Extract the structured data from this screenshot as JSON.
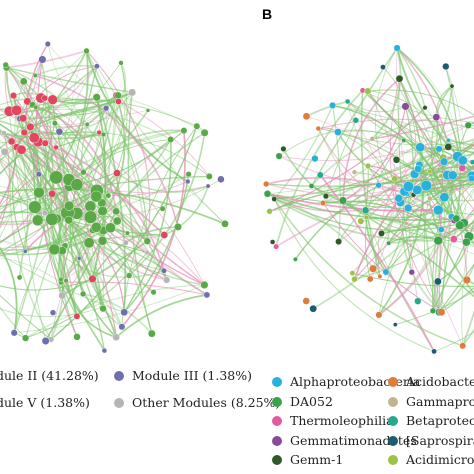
{
  "panel_b_label": "B",
  "panel_a": {
    "colors": {
      "module_ii": "#5aa846",
      "module_iii": "#6f6fb0",
      "module_v": "#e0475f",
      "other": "#b5b5b5",
      "edge_pos": "#7cc46a",
      "edge_neg": "#e58bb6"
    },
    "legend": [
      {
        "label": "dule II (41.28%)",
        "color": "#5aa846",
        "icon": "module-ii-dot"
      },
      {
        "label": "Module III (1.38%)",
        "color": "#6f6fb0",
        "icon": "module-iii-dot"
      },
      {
        "label": "dule V (1.38%)",
        "color": "#e0475f",
        "icon": "module-v-dot"
      },
      {
        "label": "Other Modules (8.25%)",
        "color": "#b5b5b5",
        "icon": "other-modules-dot"
      }
    ]
  },
  "panel_b": {
    "legend": [
      {
        "label": "Alphaproteobacteria",
        "color": "#2ab1d9",
        "icon": "alphaproteobacteria-dot"
      },
      {
        "label": "Acidobacter",
        "color": "#e07b39",
        "icon": "acidobacteria-dot"
      },
      {
        "label": "DA052",
        "color": "#3aa24b",
        "icon": "da052-dot"
      },
      {
        "label": "Gammaprot",
        "color": "#c4b48e",
        "icon": "gammaproteobacteria-dot"
      },
      {
        "label": "Thermoleophilia",
        "color": "#e35a9f",
        "icon": "thermoleophilia-dot"
      },
      {
        "label": "Betaproteob",
        "color": "#26a88c",
        "icon": "betaproteobacteria-dot"
      },
      {
        "label": "Gemmatimonadetes",
        "color": "#8a4a9a",
        "icon": "gemmatimonadetes-dot"
      },
      {
        "label": "[Saprospira",
        "color": "#1d5a73",
        "icon": "saprospirae-dot"
      },
      {
        "label": "Gemm-1",
        "color": "#2f5a28",
        "icon": "gemm-1-dot"
      },
      {
        "label": "Acidimicro",
        "color": "#9cc24a",
        "icon": "acidimicrobiia-dot"
      }
    ],
    "colors": {
      "edge_pos": "#7cc46a",
      "edge_neg": "#e58bb6"
    }
  }
}
